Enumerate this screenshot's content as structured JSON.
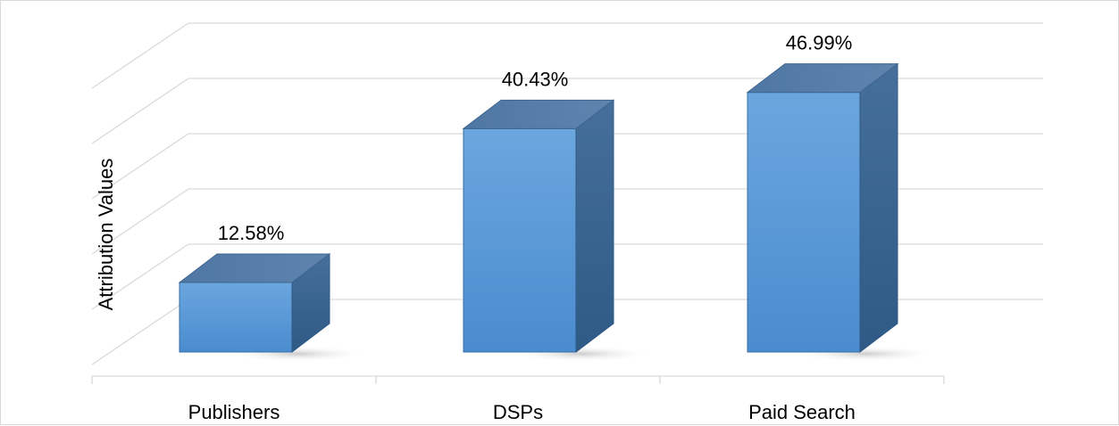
{
  "chart_data": {
    "type": "bar",
    "style": "3d-column",
    "categories": [
      "Publishers",
      "DSPs",
      "Paid Search"
    ],
    "values": [
      12.58,
      40.43,
      46.99
    ],
    "value_labels": [
      "12.58%",
      "40.43%",
      "46.99%"
    ],
    "ylabel": "Attribution Values",
    "ylim": [
      0,
      50
    ],
    "grid": true,
    "legend": "none",
    "colors": {
      "front": "#5b9bd5",
      "top": "#5a7fa8",
      "side": "#3f6e9c",
      "grid": "#d9d9d9"
    }
  }
}
